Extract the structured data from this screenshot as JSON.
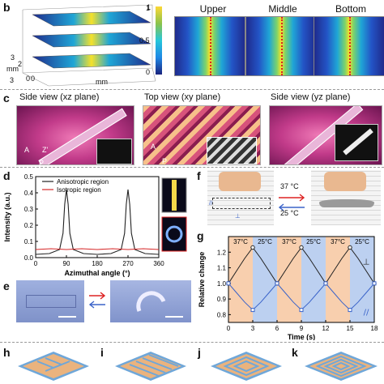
{
  "panels": {
    "b": {
      "label": "b",
      "axis_tick_3a": "3",
      "axis_tick_3b": "3",
      "axis_tick_2": "2",
      "axis_tick_1": "1",
      "axis_tick_0a": "0",
      "axis_tick_0b": "0",
      "unit_mm_left": "mm",
      "unit_mm_bottom": "mm",
      "cbar_ticks": [
        "1",
        "0.5",
        "0"
      ],
      "map_titles": [
        "Upper",
        "Middle",
        "Bottom"
      ]
    },
    "c": {
      "label": "c",
      "titles": [
        "Side view (xz plane)",
        "Top view (xy plane)",
        "Side view (yz plane)"
      ],
      "axis_A": "A",
      "axis_P": "P",
      "axis_Z": "Z'",
      "axis_A2": "A",
      "axis_P2": "P"
    },
    "d": {
      "label": "d"
    },
    "e": {
      "label": "e"
    },
    "f": {
      "label": "f",
      "temp_up": "37 °C",
      "temp_down": "25 °C",
      "parallel": "//",
      "perp": "⊥"
    },
    "g": {
      "label": "g",
      "temp_labels": [
        "37°C",
        "25°C",
        "37°C",
        "25°C",
        "37°C",
        "25°C"
      ],
      "perp": "⊥",
      "parallel": "//"
    },
    "bottom": [
      "h",
      "i",
      "j",
      "k"
    ]
  },
  "chart_data": [
    {
      "type": "line",
      "xlabel": "Azimuthal angle (°)",
      "ylabel": "Intensity (a.u.)",
      "xlim": [
        0,
        360
      ],
      "ylim": [
        0,
        0.5
      ],
      "x_ticks": [
        "0",
        "90",
        "180",
        "270",
        "360"
      ],
      "y_ticks": [
        "0.0",
        "0.1",
        "0.2",
        "0.3",
        "0.4",
        "0.5"
      ],
      "legend": "top",
      "series": [
        {
          "name": "Anisotropic region",
          "color": "#222222",
          "x": [
            0,
            40,
            70,
            80,
            85,
            90,
            95,
            100,
            110,
            140,
            180,
            220,
            250,
            260,
            265,
            270,
            275,
            280,
            290,
            320,
            360
          ],
          "values": [
            0.02,
            0.025,
            0.05,
            0.15,
            0.33,
            0.42,
            0.33,
            0.15,
            0.05,
            0.025,
            0.02,
            0.025,
            0.05,
            0.15,
            0.33,
            0.42,
            0.33,
            0.15,
            0.05,
            0.025,
            0.02
          ]
        },
        {
          "name": "Isotropic region",
          "color": "#d62728",
          "x": [
            0,
            45,
            90,
            135,
            180,
            225,
            270,
            315,
            360
          ],
          "values": [
            0.05,
            0.055,
            0.05,
            0.055,
            0.05,
            0.055,
            0.05,
            0.055,
            0.05
          ]
        }
      ]
    },
    {
      "type": "line",
      "xlabel": "Time (s)",
      "ylabel": "Relative change",
      "xlim": [
        0,
        18
      ],
      "ylim": [
        0.75,
        1.3
      ],
      "x_ticks": [
        "0",
        "3",
        "6",
        "9",
        "12",
        "15",
        "18"
      ],
      "y_ticks": [
        "0.8",
        "0.9",
        "1.0",
        "1.1",
        "1.2"
      ],
      "series": [
        {
          "name": "⊥",
          "color": "#222222",
          "x": [
            0,
            1,
            2,
            3,
            4,
            5,
            6,
            7,
            8,
            9,
            10,
            11,
            12,
            13,
            14,
            15,
            16,
            17,
            18
          ],
          "values": [
            1.0,
            1.08,
            1.16,
            1.23,
            1.16,
            1.08,
            1.0,
            1.08,
            1.16,
            1.23,
            1.16,
            1.08,
            1.0,
            1.08,
            1.16,
            1.23,
            1.16,
            1.08,
            1.0
          ]
        },
        {
          "name": "//",
          "color": "#3a63c9",
          "x": [
            0,
            1,
            2,
            3,
            4,
            5,
            6,
            7,
            8,
            9,
            10,
            11,
            12,
            13,
            14,
            15,
            16,
            17,
            18
          ],
          "values": [
            1.0,
            0.94,
            0.88,
            0.83,
            0.88,
            0.94,
            1.0,
            0.94,
            0.88,
            0.83,
            0.88,
            0.94,
            1.0,
            0.94,
            0.88,
            0.83,
            0.88,
            0.94,
            1.0
          ]
        }
      ]
    }
  ]
}
